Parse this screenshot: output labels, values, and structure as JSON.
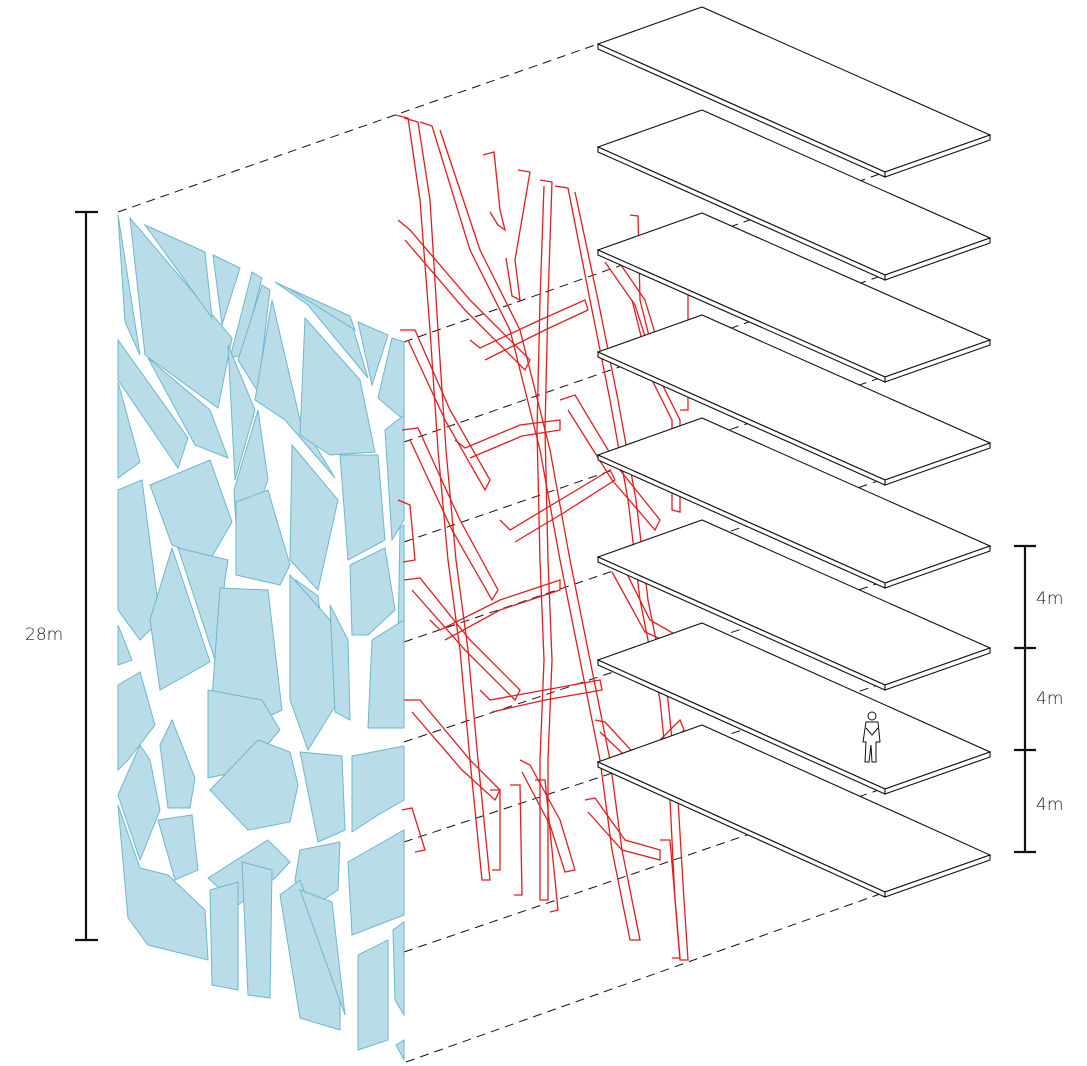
{
  "diagram": {
    "height_label": "28m",
    "floor_spacing_labels": [
      "4m",
      "4m",
      "4m"
    ]
  },
  "colors": {
    "glass_fill": "#b8dce8",
    "glass_stroke": "#6fb6cf",
    "structure": "#e01e1e",
    "lines": "#111111"
  }
}
